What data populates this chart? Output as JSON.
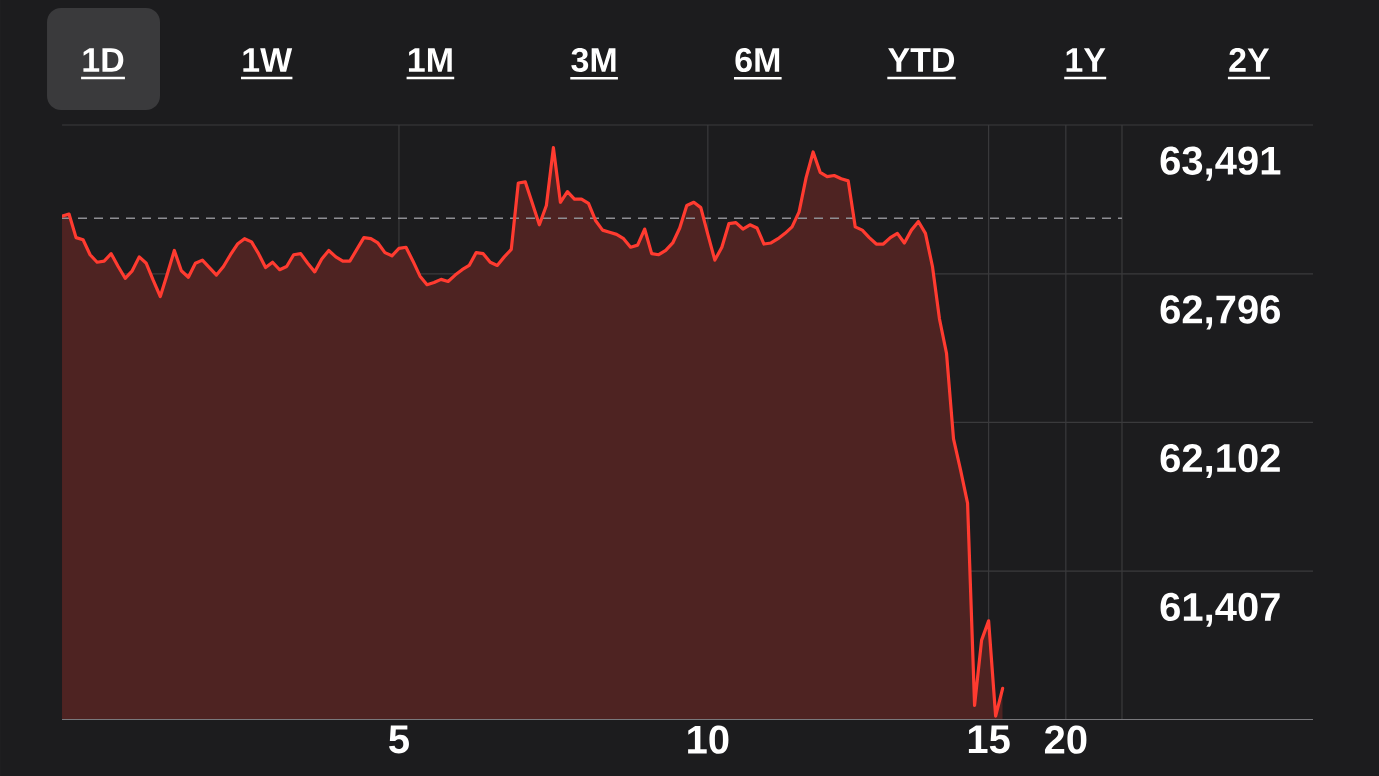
{
  "chart_data": {
    "type": "area",
    "annotations": [
      "1D",
      "1W",
      "1M",
      "3M",
      "6M",
      "YTD",
      "1Y",
      "2Y"
    ],
    "categories": [
      null,
      null,
      null,
      null,
      null,
      null,
      null,
      null,
      null,
      null,
      null,
      null,
      null,
      null,
      null,
      null,
      null,
      null,
      null,
      null,
      null,
      null,
      null,
      null,
      null,
      null,
      null,
      null,
      null,
      null,
      null,
      null,
      null,
      null,
      null,
      null,
      null,
      null,
      null,
      null,
      null,
      null,
      null,
      null,
      null,
      null,
      null,
      null,
      "5",
      null,
      null,
      null,
      null,
      null,
      null,
      null,
      null,
      null,
      null,
      null,
      null,
      null,
      null,
      null,
      null,
      null,
      null,
      null,
      null,
      null,
      null,
      null,
      null,
      null,
      null,
      null,
      null,
      null,
      null,
      null,
      null,
      null,
      null,
      null,
      null,
      null,
      null,
      null,
      null,
      null,
      null,
      null,
      "10",
      null,
      null,
      null,
      null,
      null,
      null,
      null,
      null,
      null,
      null,
      null,
      null,
      null,
      null,
      null,
      null,
      null,
      null,
      null,
      null,
      null,
      null,
      null,
      null,
      null,
      null,
      null,
      null,
      null,
      null,
      null,
      null,
      null,
      null,
      null,
      null,
      null,
      null,
      null,
      "15",
      null,
      null,
      null,
      null,
      null,
      null,
      null,
      null,
      null,
      null,
      "20",
      null,
      null,
      null,
      null,
      null,
      null,
      null,
      null
    ],
    "series": [
      {
        "color": "#ff3b30",
        "values": [
          63065,
          63075,
          62965,
          62955,
          62885,
          62850,
          62855,
          62890,
          62830,
          62775,
          62810,
          62875,
          62845,
          62765,
          62690,
          62795,
          62905,
          62810,
          62780,
          62845,
          62860,
          62825,
          62790,
          62830,
          62885,
          62935,
          62960,
          62945,
          62890,
          62825,
          62850,
          62815,
          62830,
          62885,
          62890,
          62845,
          62805,
          62865,
          62905,
          62875,
          62855,
          62855,
          62910,
          62965,
          62960,
          62940,
          62895,
          62880,
          62915,
          62920,
          62855,
          62785,
          62745,
          62755,
          62770,
          62760,
          62790,
          62815,
          62835,
          62895,
          62890,
          62850,
          62835,
          62875,
          62910,
          63220,
          63225,
          63125,
          63025,
          63115,
          63385,
          63130,
          63180,
          63145,
          63145,
          63125,
          63045,
          63000,
          62990,
          62980,
          62960,
          62920,
          62930,
          63005,
          62890,
          62885,
          62905,
          62940,
          63010,
          63115,
          63130,
          63105,
          62980,
          62860,
          62920,
          63030,
          63035,
          63005,
          63025,
          63010,
          62935,
          62940,
          62960,
          62985,
          63015,
          63085,
          63245,
          63365,
          63270,
          63250,
          63255,
          63240,
          63230,
          63015,
          63000,
          62965,
          62935,
          62935,
          62965,
          62985,
          62940,
          63000,
          63040,
          62985,
          62830,
          62585,
          62425,
          62025,
          61880,
          61725,
          60780,
          61085,
          61175,
          60730,
          60860,
          null,
          null,
          null,
          null,
          null,
          null,
          null,
          null,
          null,
          null,
          null,
          null,
          null,
          null,
          null,
          null,
          null
        ]
      }
    ],
    "ylim": [
      60712,
      63491
    ],
    "yticks": [
      {
        "value": 63491,
        "label": "63,491"
      },
      {
        "value": 62796,
        "label": "62,796"
      },
      {
        "value": 62102,
        "label": "62,102"
      },
      {
        "value": 61407,
        "label": "61,407"
      }
    ],
    "ref_lines": [
      {
        "axis": "y",
        "value": 63056,
        "color": "#8e8e93",
        "line_style": "dashed"
      }
    ],
    "grid": true
  }
}
